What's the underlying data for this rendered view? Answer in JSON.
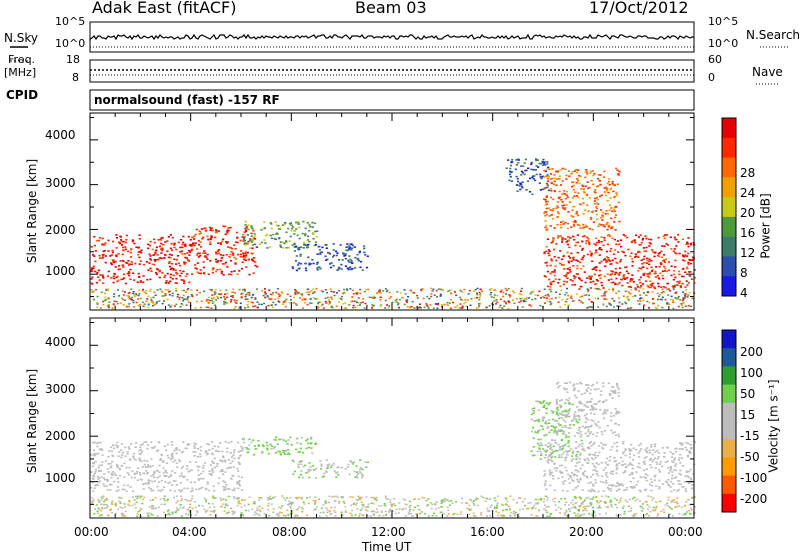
{
  "header": {
    "station": "Adak East (fitACF)",
    "beam": "Beam 03",
    "date": "17/Oct/2012"
  },
  "noise_panel": {
    "left_label": "N.Sky",
    "right_label": "N.Search",
    "left_ticks": [
      "10^5",
      "10^0"
    ],
    "right_ticks": [
      "10^5",
      "10^0"
    ]
  },
  "freq_panel": {
    "left_label_1": "Freq.",
    "left_label_2": "[MHz]",
    "right_label": "Nave",
    "left_ticks": [
      "18",
      "8"
    ],
    "right_ticks": [
      "60",
      "0"
    ]
  },
  "cpid_panel": {
    "label": "CPID",
    "text": "normalsound (fast) -157 RF"
  },
  "x_axis": {
    "label": "Time UT",
    "ticks": [
      "00:00",
      "04:00",
      "08:00",
      "12:00",
      "16:00",
      "20:00",
      "00:00"
    ]
  },
  "colors": {
    "power_scale": [
      "#1a1ae6",
      "#2a4fb0",
      "#3c7a6a",
      "#4d9a3a",
      "#c9c91a",
      "#f0a000",
      "#ff6a00",
      "#ff2800",
      "#e60000"
    ],
    "velocity_scale": [
      "#ff0000",
      "#ff5a00",
      "#ff9a00",
      "#e9b04a",
      "#bdbdbd",
      "#bdbdbd",
      "#6fd04a",
      "#2e9e2e",
      "#1e5a9a",
      "#1414c8"
    ]
  },
  "chart_data": [
    {
      "type": "heatmap",
      "panel": "power",
      "ylabel": "Slant Range [km]",
      "yticks": [
        1000,
        2000,
        3000,
        4000
      ],
      "ylim": [
        200,
        4600
      ],
      "xlim": [
        0,
        24
      ],
      "colorbar": {
        "label": "Power [dB]",
        "ticks": [
          "4",
          "8",
          "12",
          "16",
          "20",
          "24",
          "28"
        ],
        "range": [
          0,
          30
        ]
      },
      "regions": [
        {
          "t0": 0.0,
          "t1": 4.0,
          "r0": 800,
          "r1": 1900,
          "value": 27
        },
        {
          "t0": 4.0,
          "t1": 6.6,
          "r0": 1000,
          "r1": 2100,
          "value": 26
        },
        {
          "t0": 6.0,
          "t1": 9.0,
          "r0": 1600,
          "r1": 2200,
          "value": 12
        },
        {
          "t0": 8.0,
          "t1": 11.0,
          "r0": 1100,
          "r1": 1700,
          "value": 5
        },
        {
          "t0": 16.5,
          "t1": 18.2,
          "r0": 2800,
          "r1": 3600,
          "value": 6
        },
        {
          "t0": 18.0,
          "t1": 24.0,
          "r0": 700,
          "r1": 1900,
          "value": 26
        },
        {
          "t0": 18.0,
          "t1": 21.0,
          "r0": 2000,
          "r1": 3400,
          "value": 22
        }
      ]
    },
    {
      "type": "heatmap",
      "panel": "velocity",
      "ylabel": "Slant Range [km]",
      "yticks": [
        1000,
        2000,
        3000,
        4000
      ],
      "ylim": [
        200,
        4600
      ],
      "xlim": [
        0,
        24
      ],
      "colorbar": {
        "label": "Velocity [m s⁻¹]",
        "ticks": [
          "200",
          "100",
          "50",
          "15",
          "-15",
          "-50",
          "-100",
          "-200"
        ],
        "range": [
          -250,
          250
        ]
      },
      "regions": [
        {
          "t0": 0.0,
          "t1": 6.0,
          "r0": 800,
          "r1": 1900,
          "value": 0
        },
        {
          "t0": 6.0,
          "t1": 9.0,
          "r0": 1600,
          "r1": 2000,
          "value": 60
        },
        {
          "t0": 8.0,
          "t1": 11.0,
          "r0": 1100,
          "r1": 1500,
          "value": 40
        },
        {
          "t0": 17.5,
          "t1": 19.5,
          "r0": 1500,
          "r1": 2800,
          "value": 60
        },
        {
          "t0": 18.0,
          "t1": 24.0,
          "r0": 800,
          "r1": 1900,
          "value": 0
        },
        {
          "t0": 18.5,
          "t1": 21.0,
          "r0": 2000,
          "r1": 3200,
          "value": 10
        }
      ]
    }
  ]
}
